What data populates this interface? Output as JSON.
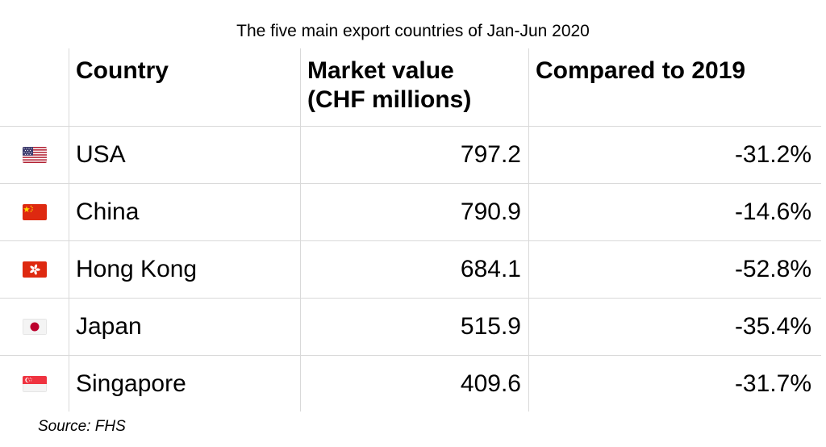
{
  "chart_data": {
    "type": "table",
    "title": "The five main export countries of Jan-Jun 2020",
    "columns": [
      "",
      "Country",
      "Market value (CHF millions)",
      "Compared to 2019"
    ],
    "rows": [
      {
        "flag_icon": "us-flag-icon",
        "country": "USA",
        "market_value": 797.2,
        "market_value_text": "797.2",
        "change_text": "-31.2%",
        "change_pct": -31.2
      },
      {
        "flag_icon": "china-flag-icon",
        "country": "China",
        "market_value": 790.9,
        "market_value_text": "790.9",
        "change_text": "-14.6%",
        "change_pct": -14.6
      },
      {
        "flag_icon": "hong-kong-flag-icon",
        "country": "Hong Kong",
        "market_value": 684.1,
        "market_value_text": "684.1",
        "change_text": "-52.8%",
        "change_pct": -52.8
      },
      {
        "flag_icon": "japan-flag-icon",
        "country": "Japan",
        "market_value": 515.9,
        "market_value_text": "515.9",
        "change_text": "-35.4%",
        "change_pct": -35.4
      },
      {
        "flag_icon": "singapore-flag-icon",
        "country": "Singapore",
        "market_value": 409.6,
        "market_value_text": "409.6",
        "change_text": "-31.7%",
        "change_pct": -31.7
      }
    ],
    "source": "Source: FHS"
  },
  "header": {
    "country": "Country",
    "market_value_line1": "Market value",
    "market_value_line2": "(CHF millions)",
    "compared": "Compared to 2019"
  },
  "colors": {
    "grid": "#d9d9d9",
    "text": "#000000"
  }
}
